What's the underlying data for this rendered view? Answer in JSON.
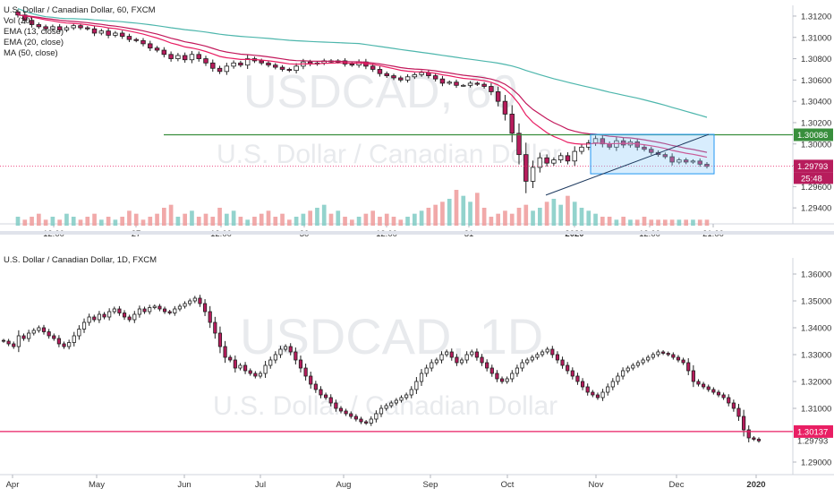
{
  "chart_data": [
    {
      "type": "candlestick",
      "symbol_title": "U.S. Dollar / Canadian Dollar, 60, FXCM",
      "indicators": [
        "Vol (20)",
        "EMA (13, close)",
        "EMA (20, close)",
        "MA (50, close)"
      ],
      "watermark": "USDCAD, 60",
      "watermark_sub": "U.S. Dollar / Canadian Dollar",
      "ylim": [
        1.2925,
        1.3125
      ],
      "yticks": [
        "1.31200",
        "1.31000",
        "1.30800",
        "1.30600",
        "1.30400",
        "1.30200",
        "1.30000",
        "1.29800",
        "1.29600",
        "1.29400"
      ],
      "xticks": [
        "12:00",
        "27",
        "12:00",
        "30",
        "12:00",
        "31",
        "2020",
        "12:00",
        "21:00"
      ],
      "price_labels": {
        "last": "1.29793",
        "level": "1.30086",
        "countdown": "25:48"
      },
      "horizontal_level": 1.30086,
      "last_price": 1.29793,
      "range_box": {
        "y_top": 1.3009,
        "y_bottom": 1.2972
      },
      "trend_line": {
        "y_start": 1.2952,
        "y_end": 1.3009
      },
      "colors": {
        "up": "#ffffff",
        "down": "#b71c5c",
        "ema13": "#e91e63",
        "ema20": "#c2185b",
        "ma50": "#4db6ac",
        "level": "#388e3c",
        "box": "#90caf9",
        "vol_up": "#80cbc4",
        "vol_down": "#ef9a9a"
      },
      "closes": [
        1.3121,
        1.3116,
        1.3112,
        1.311,
        1.3108,
        1.311,
        1.3107,
        1.3109,
        1.3111,
        1.3109,
        1.3108,
        1.3104,
        1.3106,
        1.3102,
        1.3104,
        1.3101,
        1.3098,
        1.3097,
        1.3094,
        1.309,
        1.3088,
        1.3084,
        1.308,
        1.3083,
        1.3079,
        1.3084,
        1.308,
        1.3076,
        1.3071,
        1.3068,
        1.3073,
        1.3076,
        1.3074,
        1.308,
        1.3078,
        1.3076,
        1.3074,
        1.3072,
        1.307,
        1.3069,
        1.3073,
        1.3077,
        1.3075,
        1.3076,
        1.3078,
        1.3077,
        1.3078,
        1.3075,
        1.3074,
        1.3077,
        1.3073,
        1.307,
        1.3066,
        1.3064,
        1.3062,
        1.306,
        1.3063,
        1.3065,
        1.3067,
        1.3064,
        1.3061,
        1.3057,
        1.3058,
        1.3055,
        1.3055,
        1.3057,
        1.3056,
        1.3054,
        1.3049,
        1.304,
        1.3028,
        1.301,
        1.299,
        1.2965,
        1.2978,
        1.2987,
        1.2982,
        1.2985,
        1.2989,
        1.2984,
        1.2993,
        1.2997,
        1.3001,
        1.3005,
        1.3,
        1.2997,
        1.3003,
        1.2999,
        1.3002,
        1.2997,
        1.2995,
        1.2992,
        1.299,
        1.2988,
        1.2983,
        1.2985,
        1.2983,
        1.2984,
        1.2981,
        1.2979
      ],
      "volumes": [
        3,
        2,
        3,
        4,
        2,
        3,
        2,
        4,
        3,
        2,
        3,
        4,
        2,
        3,
        2,
        3,
        5,
        4,
        2,
        3,
        4,
        6,
        7,
        3,
        4,
        5,
        3,
        4,
        3,
        6,
        4,
        5,
        3,
        2,
        3,
        4,
        5,
        3,
        4,
        2,
        3,
        4,
        5,
        6,
        7,
        4,
        5,
        3,
        2,
        3,
        4,
        5,
        3,
        4,
        3,
        2,
        3,
        4,
        5,
        6,
        7,
        8,
        9,
        12,
        10,
        8,
        11,
        6,
        3,
        4,
        5,
        4,
        6,
        7,
        5,
        6,
        8,
        9,
        7,
        10,
        8,
        6,
        5,
        4,
        3,
        3,
        2,
        3,
        2,
        2,
        3,
        2,
        2,
        2,
        2,
        2,
        2,
        2,
        2,
        2
      ]
    },
    {
      "type": "candlestick",
      "symbol_title": "U.S. Dollar / Canadian Dollar, 1D, FXCM",
      "watermark": "USDCAD, 1D",
      "watermark_sub": "U.S. Dollar / Canadian Dollar",
      "ylim": [
        1.288,
        1.364
      ],
      "yticks": [
        "1.36000",
        "1.35000",
        "1.34000",
        "1.33000",
        "1.32000",
        "1.31000",
        "1.29000"
      ],
      "xticks": [
        "Apr",
        "May",
        "Jun",
        "Jul",
        "Aug",
        "Sep",
        "Oct",
        "Nov",
        "Dec",
        "2020"
      ],
      "price_labels": {
        "level": "1.30137",
        "last": "1.29793"
      },
      "horizontal_level": 1.30137,
      "last_price": 1.29793,
      "closes": [
        1.335,
        1.334,
        1.333,
        1.337,
        1.336,
        1.338,
        1.339,
        1.34,
        1.3385,
        1.337,
        1.336,
        1.334,
        1.333,
        1.3345,
        1.337,
        1.3395,
        1.342,
        1.344,
        1.343,
        1.345,
        1.344,
        1.346,
        1.347,
        1.3455,
        1.344,
        1.343,
        1.345,
        1.347,
        1.346,
        1.3475,
        1.348,
        1.347,
        1.346,
        1.3455,
        1.347,
        1.348,
        1.349,
        1.35,
        1.351,
        1.349,
        1.346,
        1.342,
        1.338,
        1.333,
        1.329,
        1.328,
        1.325,
        1.326,
        1.324,
        1.323,
        1.322,
        1.323,
        1.326,
        1.328,
        1.33,
        1.332,
        1.333,
        1.331,
        1.328,
        1.325,
        1.322,
        1.319,
        1.317,
        1.315,
        1.314,
        1.312,
        1.31,
        1.309,
        1.308,
        1.307,
        1.306,
        1.305,
        1.3045,
        1.306,
        1.308,
        1.31,
        1.311,
        1.312,
        1.313,
        1.314,
        1.315,
        1.317,
        1.32,
        1.323,
        1.325,
        1.327,
        1.328,
        1.33,
        1.331,
        1.329,
        1.327,
        1.328,
        1.33,
        1.331,
        1.329,
        1.327,
        1.325,
        1.323,
        1.321,
        1.32,
        1.321,
        1.323,
        1.325,
        1.327,
        1.328,
        1.329,
        1.33,
        1.331,
        1.332,
        1.33,
        1.328,
        1.326,
        1.324,
        1.322,
        1.32,
        1.318,
        1.316,
        1.315,
        1.314,
        1.316,
        1.318,
        1.32,
        1.322,
        1.324,
        1.325,
        1.326,
        1.327,
        1.328,
        1.329,
        1.33,
        1.331,
        1.3305,
        1.33,
        1.329,
        1.328,
        1.327,
        1.324,
        1.32,
        1.319,
        1.318,
        1.317,
        1.316,
        1.315,
        1.314,
        1.312,
        1.31,
        1.307,
        1.302,
        1.299,
        1.2985,
        1.2979
      ]
    }
  ]
}
